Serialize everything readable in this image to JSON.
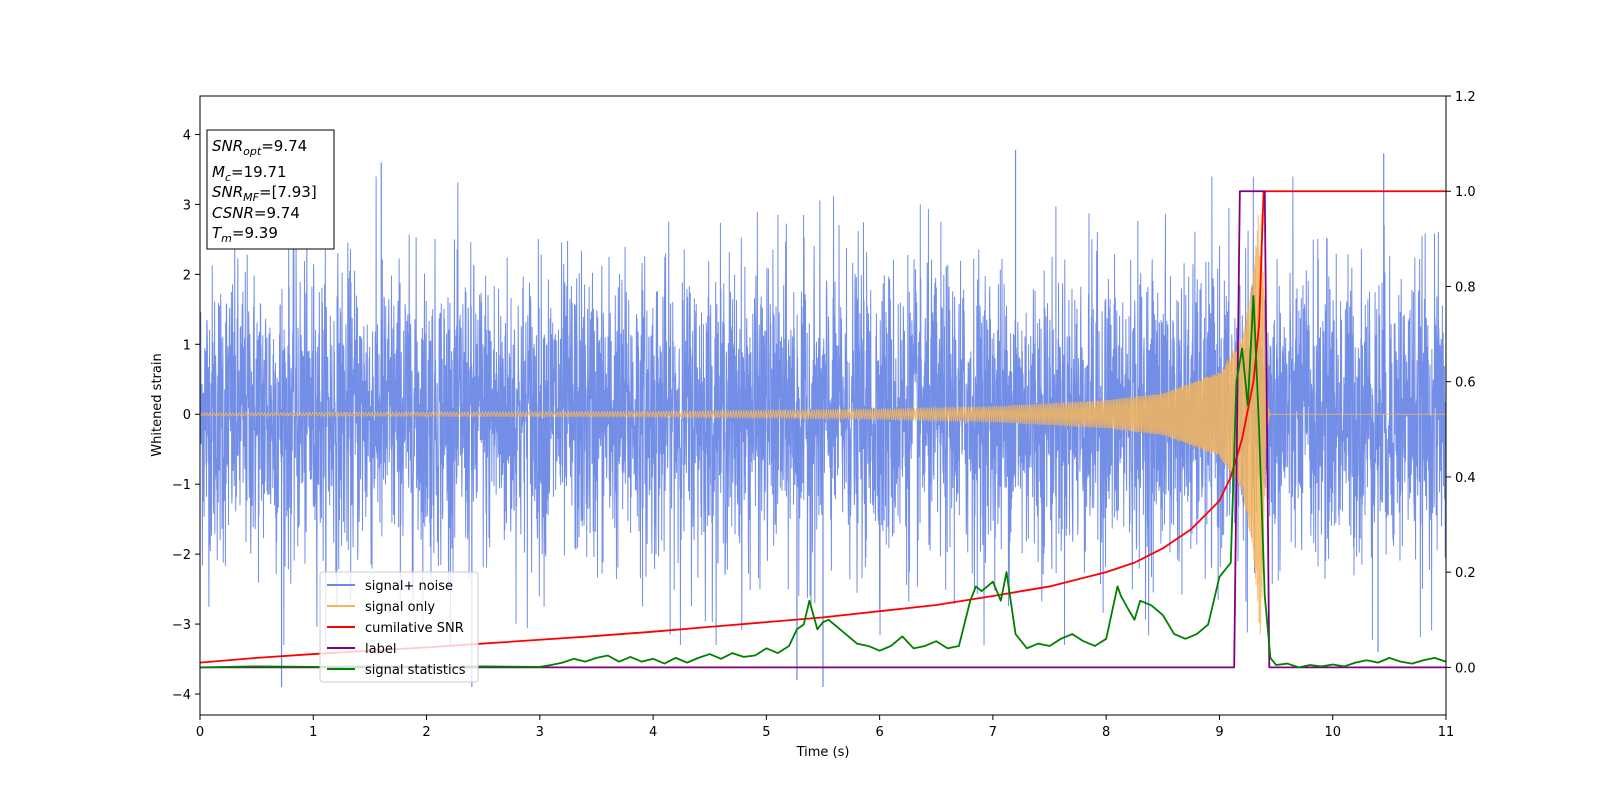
{
  "chart_data": {
    "type": "line",
    "title": "",
    "xlabel": "Time (s)",
    "ylabel": "Whitened strain",
    "xlim": [
      0,
      11
    ],
    "ylim_left": [
      -4.3,
      4.55
    ],
    "ylim_right": [
      -0.1,
      1.2
    ],
    "x_ticks": [
      0,
      1,
      2,
      3,
      4,
      5,
      6,
      7,
      8,
      9,
      10,
      11
    ],
    "y_ticks_left": [
      -4,
      -3,
      -2,
      -1,
      0,
      1,
      2,
      3,
      4
    ],
    "y_ticks_right": [
      "0.0",
      "0.2",
      "0.4",
      "0.6",
      "0.8",
      "1.0",
      "1.2"
    ],
    "grid": false,
    "legend_position": "lower-left",
    "colors": {
      "noise": "#6b88e6",
      "signal": "#f5b55a",
      "csnr": "#ff0000",
      "label": "#800080",
      "stats": "#008000"
    },
    "info_box": {
      "snr_opt": {
        "main": "SNR",
        "sub": "opt",
        "value": "=9.74"
      },
      "mc": {
        "main": "M",
        "sub": "c",
        "value": "=19.71"
      },
      "snr_mf": {
        "main": "SNR",
        "sub": "MF",
        "value": "=[7.93]"
      },
      "csnr": {
        "main": "CSNR",
        "sub": "",
        "value": "=9.74"
      },
      "tm": {
        "main": "T",
        "sub": "m",
        "value": "=9.39"
      }
    },
    "series": [
      {
        "name": "signal+ noise",
        "axis": "left",
        "description_note": "approximately unit-variance whitened noise; envelope typically between -2.6 and 3.0 with spikes near 3.8 and -3.9",
        "amplitude_typical": 2.7,
        "spikes": [
          [
            0.72,
            -3.9
          ],
          [
            1.6,
            3.6
          ],
          [
            2.4,
            -3.9
          ],
          [
            5.27,
            -3.8
          ],
          [
            5.5,
            -3.9
          ],
          [
            7.2,
            3.78
          ],
          [
            10.45,
            3.73
          ],
          [
            10.4,
            -3.4
          ]
        ]
      },
      {
        "name": "signal only",
        "axis": "left",
        "merger_time": 9.39,
        "peak_amplitude": 3.2,
        "envelope": [
          [
            0,
            0.02
          ],
          [
            4,
            0.04
          ],
          [
            6,
            0.07
          ],
          [
            7,
            0.11
          ],
          [
            8,
            0.2
          ],
          [
            8.5,
            0.3
          ],
          [
            9.0,
            0.6
          ],
          [
            9.2,
            1.1
          ],
          [
            9.3,
            2.0
          ],
          [
            9.36,
            3.2
          ],
          [
            9.45,
            0.0
          ],
          [
            11,
            0.0
          ]
        ]
      },
      {
        "name": "cumilative SNR",
        "axis": "right",
        "x": [
          0,
          0.5,
          1,
          1.5,
          2,
          2.5,
          3,
          3.5,
          4,
          4.5,
          5,
          5.5,
          6,
          6.5,
          7,
          7.5,
          8,
          8.25,
          8.5,
          8.75,
          9.0,
          9.1,
          9.2,
          9.3,
          9.35,
          9.39,
          11
        ],
        "values": [
          0.01,
          0.02,
          0.028,
          0.035,
          0.042,
          0.05,
          0.058,
          0.066,
          0.075,
          0.085,
          0.095,
          0.105,
          0.118,
          0.131,
          0.15,
          0.17,
          0.2,
          0.22,
          0.25,
          0.29,
          0.35,
          0.4,
          0.48,
          0.6,
          0.72,
          1.0,
          1.0
        ]
      },
      {
        "name": "label",
        "axis": "right",
        "x": [
          0,
          9.13,
          9.18,
          9.4,
          9.44,
          11
        ],
        "values": [
          0.0,
          0.0,
          1.0,
          1.0,
          0.0,
          0.0
        ]
      },
      {
        "name": "signal statistics",
        "axis": "right",
        "x": [
          0,
          0.5,
          1,
          1.5,
          2,
          2.5,
          3,
          3.1,
          3.2,
          3.3,
          3.4,
          3.5,
          3.6,
          3.7,
          3.8,
          3.9,
          4.0,
          4.1,
          4.2,
          4.3,
          4.4,
          4.5,
          4.6,
          4.7,
          4.8,
          4.9,
          5.0,
          5.1,
          5.2,
          5.27,
          5.33,
          5.38,
          5.45,
          5.5,
          5.55,
          5.6,
          5.7,
          5.8,
          5.9,
          6.0,
          6.1,
          6.2,
          6.3,
          6.4,
          6.5,
          6.6,
          6.7,
          6.8,
          6.85,
          6.9,
          7.0,
          7.07,
          7.12,
          7.2,
          7.3,
          7.4,
          7.5,
          7.6,
          7.7,
          7.8,
          7.9,
          8.0,
          8.1,
          8.13,
          8.2,
          8.25,
          8.3,
          8.4,
          8.5,
          8.6,
          8.7,
          8.8,
          8.9,
          9.0,
          9.1,
          9.15,
          9.2,
          9.25,
          9.3,
          9.35,
          9.4,
          9.45,
          9.5,
          9.6,
          9.7,
          9.8,
          9.9,
          10.0,
          10.1,
          10.2,
          10.3,
          10.4,
          10.5,
          10.6,
          10.7,
          10.8,
          10.9,
          11.0
        ],
        "values": [
          0.0,
          0.002,
          0.001,
          0.002,
          0.001,
          0.002,
          0.001,
          0.005,
          0.01,
          0.018,
          0.012,
          0.02,
          0.025,
          0.012,
          0.022,
          0.012,
          0.018,
          0.008,
          0.02,
          0.01,
          0.02,
          0.028,
          0.018,
          0.03,
          0.022,
          0.025,
          0.04,
          0.03,
          0.045,
          0.08,
          0.09,
          0.14,
          0.08,
          0.095,
          0.1,
          0.09,
          0.07,
          0.05,
          0.045,
          0.035,
          0.045,
          0.065,
          0.04,
          0.045,
          0.055,
          0.04,
          0.045,
          0.14,
          0.17,
          0.16,
          0.18,
          0.14,
          0.2,
          0.07,
          0.04,
          0.05,
          0.045,
          0.06,
          0.07,
          0.055,
          0.045,
          0.06,
          0.17,
          0.15,
          0.12,
          0.1,
          0.14,
          0.13,
          0.11,
          0.07,
          0.06,
          0.07,
          0.09,
          0.19,
          0.22,
          0.6,
          0.67,
          0.55,
          0.78,
          0.5,
          0.15,
          0.02,
          0.005,
          0.008,
          0.0,
          0.005,
          0.002,
          0.006,
          0.002,
          0.01,
          0.015,
          0.01,
          0.02,
          0.012,
          0.008,
          0.015,
          0.02,
          0.012
        ]
      }
    ],
    "legend": [
      "signal+ noise",
      "signal only",
      "cumilative SNR",
      "label",
      "signal statistics"
    ]
  }
}
